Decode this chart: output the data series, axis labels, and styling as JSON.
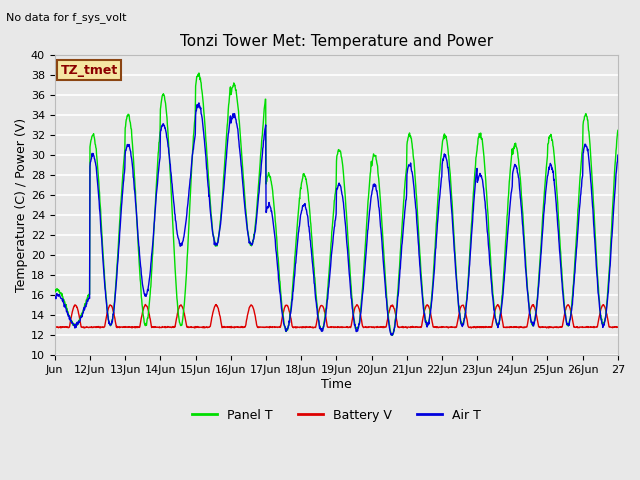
{
  "title": "Tonzi Tower Met: Temperature and Power",
  "xlabel": "Time",
  "ylabel": "Temperature (C) / Power (V)",
  "top_left_note": "No data for f_sys_volt",
  "legend_label": "TZ_tmet",
  "ylim": [
    10,
    40
  ],
  "yticks": [
    10,
    12,
    14,
    16,
    18,
    20,
    22,
    24,
    26,
    28,
    30,
    32,
    34,
    36,
    38,
    40
  ],
  "xtick_labels": [
    "Jun",
    "12Jun",
    "13Jun",
    "14Jun",
    "15Jun",
    "16Jun",
    "17Jun",
    "18Jun",
    "19Jun",
    "20Jun",
    "21Jun",
    "22Jun",
    "23Jun",
    "24Jun",
    "25Jun",
    "26Jun",
    "27"
  ],
  "fig_bg": "#e8e8e8",
  "plot_bg": "#e8e8e8",
  "grid_color": "#ffffff",
  "panel_color": "#00dd00",
  "battery_color": "#dd0000",
  "air_color": "#0000dd",
  "legend_items": [
    "Panel T",
    "Battery V",
    "Air T"
  ],
  "legend_colors": [
    "#00dd00",
    "#dd0000",
    "#0000dd"
  ],
  "num_days": 16,
  "day_panel_peaks": [
    16.5,
    32,
    34,
    36,
    38,
    37,
    28,
    28,
    30.5,
    30,
    32,
    32,
    32,
    31,
    32,
    34
  ],
  "day_air_peaks": [
    16.0,
    30,
    31,
    33,
    35,
    34,
    25,
    25,
    27,
    27,
    29,
    30,
    28,
    29,
    29,
    31
  ],
  "day_troughs_panel": [
    13,
    13,
    13,
    13,
    21,
    21,
    12.5,
    12.5,
    12.5,
    12,
    13,
    13,
    13,
    13,
    13,
    13
  ],
  "day_troughs_air": [
    13,
    13,
    16,
    21,
    21,
    21,
    12.5,
    12.5,
    12.5,
    12,
    13,
    13,
    13,
    13,
    13,
    13
  ],
  "battery_base": 12.8,
  "battery_peak": 15.0
}
